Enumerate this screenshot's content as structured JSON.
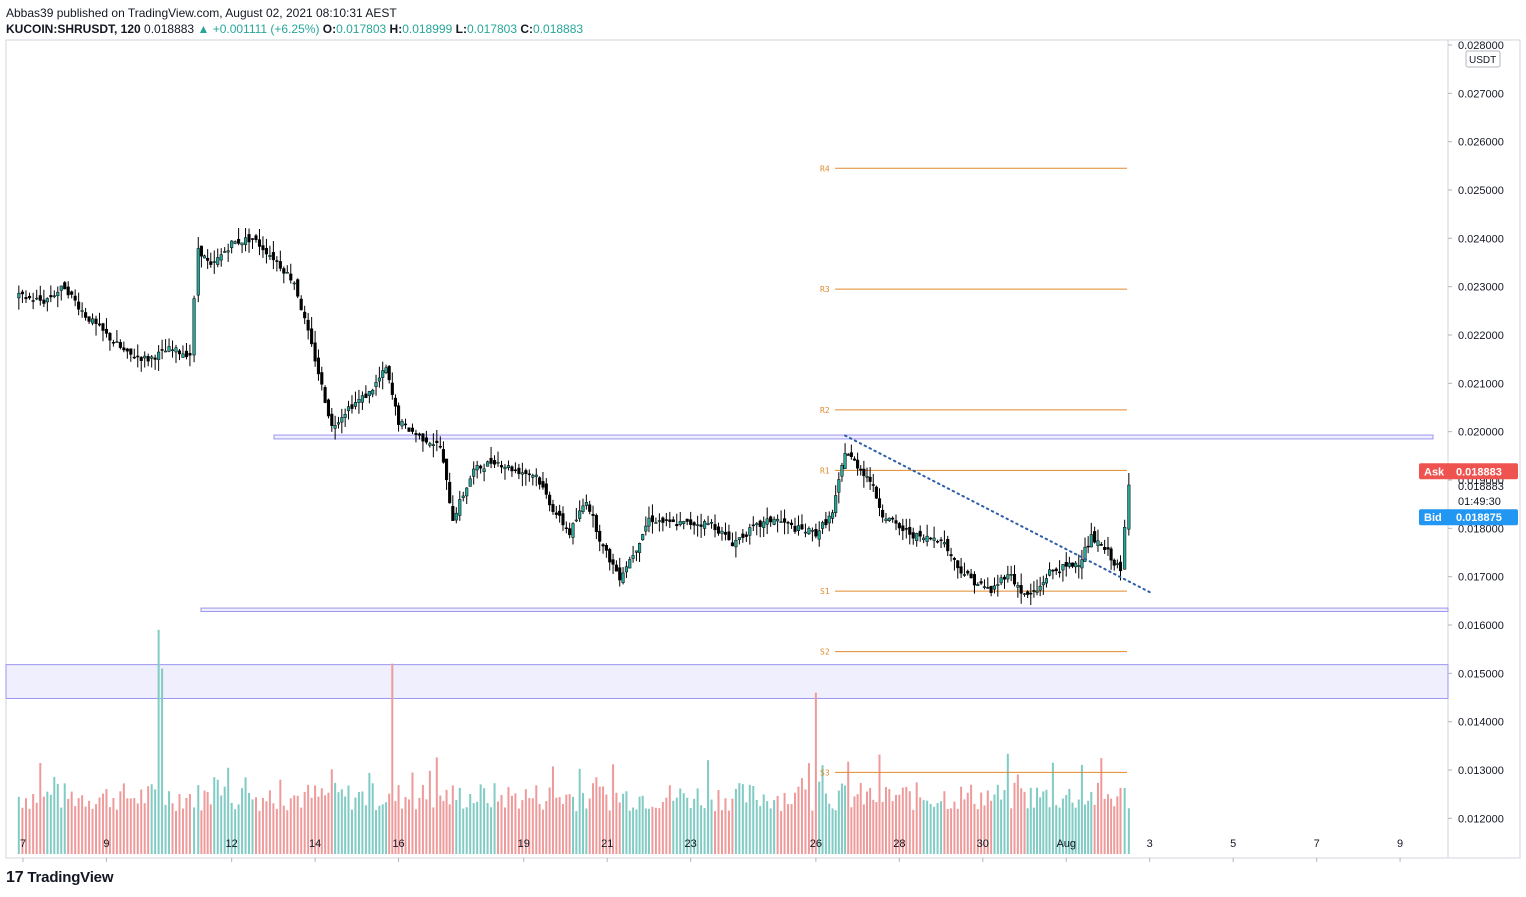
{
  "header": {
    "publisher_line": "Abbas39 published on TradingView.com, August 02, 2021 08:10:31 AEST",
    "symbol": "KUCOIN:SHRUSDT, 120",
    "last": "0.018883",
    "arrow": "▲",
    "change": "+0.001111 (+6.25%)",
    "o_label": "O:",
    "o_value": "0.017803",
    "h_label": "H:",
    "h_value": "0.018999",
    "l_label": "L:",
    "l_value": "0.017803",
    "c_label": "C:",
    "c_value": "0.018883"
  },
  "footer": {
    "logo_mark": "17",
    "logo_text": "TradingView"
  },
  "colors": {
    "up": "#26a69a",
    "down": "#000000",
    "pivot": "#e08a2c",
    "zone": "#9c96f0",
    "trend": "#2e5ea8",
    "ask": "#ef5350",
    "bid": "#2196f3",
    "vol_up": "#80cbc4",
    "vol_down": "#ef9a9a"
  },
  "chart_data": {
    "type": "candlestick",
    "currency": "USDT",
    "ylim": [
      0.0118,
      0.028
    ],
    "y_ticks": [
      "0.028000",
      "0.027000",
      "0.026000",
      "0.025000",
      "0.024000",
      "0.023000",
      "0.022000",
      "0.021000",
      "0.020000",
      "0.019000",
      "0.018000",
      "0.017000",
      "0.016000",
      "0.015000",
      "0.014000",
      "0.013000",
      "0.012000"
    ],
    "x_ticks": [
      {
        "label": "7",
        "day": 7
      },
      {
        "label": "9",
        "day": 9
      },
      {
        "label": "12",
        "day": 12
      },
      {
        "label": "14",
        "day": 14
      },
      {
        "label": "16",
        "day": 16
      },
      {
        "label": "19",
        "day": 19
      },
      {
        "label": "21",
        "day": 21
      },
      {
        "label": "23",
        "day": 23
      },
      {
        "label": "26",
        "day": 26
      },
      {
        "label": "28",
        "day": 28
      },
      {
        "label": "30",
        "day": 30
      },
      {
        "label": "Aug",
        "day": 32
      },
      {
        "label": "3",
        "day": 34
      },
      {
        "label": "5",
        "day": 36
      },
      {
        "label": "7",
        "day": 38
      },
      {
        "label": "9",
        "day": 40
      }
    ],
    "pivots": [
      {
        "label": "R4",
        "value": 0.02545
      },
      {
        "label": "R3",
        "value": 0.02295
      },
      {
        "label": "R2",
        "value": 0.02045
      },
      {
        "label": "R1",
        "value": 0.0192
      },
      {
        "label": "S1",
        "value": 0.0167
      },
      {
        "label": "S2",
        "value": 0.01545
      },
      {
        "label": "S3",
        "value": 0.01295
      }
    ],
    "zones": [
      {
        "from": 0.01985,
        "to": 0.01993
      },
      {
        "from": 0.01628,
        "to": 0.01635
      },
      {
        "from": 0.01448,
        "to": 0.01518
      }
    ],
    "trendline": {
      "start": {
        "day": 26.7,
        "price": 0.01992
      },
      "end": {
        "day": 34.0,
        "price": 0.01668
      }
    },
    "ask": {
      "label": "Ask",
      "value": "0.018883"
    },
    "bid": {
      "label": "Bid",
      "value": "0.018875"
    },
    "last_price": "0.018883",
    "countdown": "01:49:30",
    "series": [
      {
        "day": 6.9,
        "close": 0.0228
      },
      {
        "day": 7.5,
        "close": 0.0227
      },
      {
        "day": 8.0,
        "close": 0.023
      },
      {
        "day": 8.5,
        "close": 0.0224
      },
      {
        "day": 9.0,
        "close": 0.022
      },
      {
        "day": 9.5,
        "close": 0.0216
      },
      {
        "day": 10.0,
        "close": 0.0215
      },
      {
        "day": 10.5,
        "close": 0.0217
      },
      {
        "day": 11.0,
        "close": 0.0216
      },
      {
        "day": 11.2,
        "close": 0.0238
      },
      {
        "day": 11.5,
        "close": 0.0234
      },
      {
        "day": 12.0,
        "close": 0.0239
      },
      {
        "day": 12.5,
        "close": 0.024
      },
      {
        "day": 13.0,
        "close": 0.0236
      },
      {
        "day": 13.5,
        "close": 0.0231
      },
      {
        "day": 14.0,
        "close": 0.0215
      },
      {
        "day": 14.4,
        "close": 0.0201
      },
      {
        "day": 14.8,
        "close": 0.0205
      },
      {
        "day": 15.3,
        "close": 0.0208
      },
      {
        "day": 15.7,
        "close": 0.0213
      },
      {
        "day": 16.0,
        "close": 0.0202
      },
      {
        "day": 16.5,
        "close": 0.0199
      },
      {
        "day": 17.0,
        "close": 0.0197
      },
      {
        "day": 17.3,
        "close": 0.0182
      },
      {
        "day": 17.8,
        "close": 0.0192
      },
      {
        "day": 18.3,
        "close": 0.0194
      },
      {
        "day": 18.8,
        "close": 0.0192
      },
      {
        "day": 19.3,
        "close": 0.0191
      },
      {
        "day": 19.7,
        "close": 0.0184
      },
      {
        "day": 20.1,
        "close": 0.0179
      },
      {
        "day": 20.5,
        "close": 0.0186
      },
      {
        "day": 20.9,
        "close": 0.0176
      },
      {
        "day": 21.3,
        "close": 0.017
      },
      {
        "day": 21.7,
        "close": 0.0176
      },
      {
        "day": 22.0,
        "close": 0.0182
      },
      {
        "day": 22.5,
        "close": 0.0181
      },
      {
        "day": 23.0,
        "close": 0.0181
      },
      {
        "day": 23.5,
        "close": 0.0181
      },
      {
        "day": 24.0,
        "close": 0.0177
      },
      {
        "day": 24.5,
        "close": 0.018
      },
      {
        "day": 25.0,
        "close": 0.0182
      },
      {
        "day": 25.5,
        "close": 0.018
      },
      {
        "day": 26.0,
        "close": 0.0179
      },
      {
        "day": 26.4,
        "close": 0.0183
      },
      {
        "day": 26.7,
        "close": 0.0196
      },
      {
        "day": 27.0,
        "close": 0.0193
      },
      {
        "day": 27.3,
        "close": 0.019
      },
      {
        "day": 27.6,
        "close": 0.0183
      },
      {
        "day": 28.0,
        "close": 0.018
      },
      {
        "day": 28.5,
        "close": 0.0178
      },
      {
        "day": 29.0,
        "close": 0.0178
      },
      {
        "day": 29.4,
        "close": 0.0172
      },
      {
        "day": 29.8,
        "close": 0.0169
      },
      {
        "day": 30.2,
        "close": 0.0167
      },
      {
        "day": 30.6,
        "close": 0.0171
      },
      {
        "day": 31.0,
        "close": 0.0166
      },
      {
        "day": 31.3,
        "close": 0.0167
      },
      {
        "day": 31.6,
        "close": 0.0171
      },
      {
        "day": 32.0,
        "close": 0.0172
      },
      {
        "day": 32.3,
        "close": 0.0173
      },
      {
        "day": 32.6,
        "close": 0.0178
      },
      {
        "day": 33.0,
        "close": 0.0175
      },
      {
        "day": 33.3,
        "close": 0.0171
      },
      {
        "day": 33.5,
        "close": 0.01888
      }
    ]
  }
}
